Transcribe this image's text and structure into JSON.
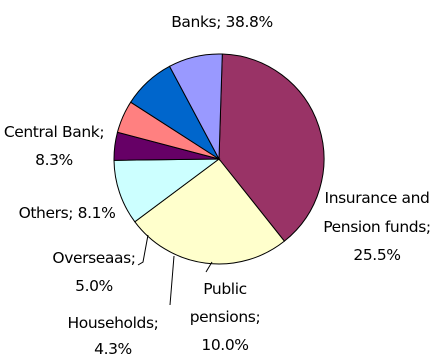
{
  "chart_data": {
    "type": "pie",
    "title": "",
    "slices": [
      {
        "label": "Banks",
        "value": 38.8,
        "value_text": "38.8%",
        "color": "#993366"
      },
      {
        "label": "Insurance and Pension funds",
        "value": 25.5,
        "value_text": "25.5%",
        "color": "#FFFFCC"
      },
      {
        "label": "Public pensions",
        "value": 10.0,
        "value_text": "10.0%",
        "color": "#CCFFFF"
      },
      {
        "label": "Households",
        "value": 4.3,
        "value_text": "4.3%",
        "color": "#660066"
      },
      {
        "label": "Overseaas",
        "value": 5.0,
        "value_text": "5.0%",
        "color": "#FF8080"
      },
      {
        "label": "Others",
        "value": 8.1,
        "value_text": "8.1%",
        "color": "#0066CC"
      },
      {
        "label": "Central Bank",
        "value": 8.3,
        "value_text": "8.3%",
        "color": "#9999FF"
      }
    ],
    "data_labels": {
      "banks": "Banks; 38.8%",
      "insurance_line1": "Insurance and",
      "insurance_line2": "Pension funds;",
      "insurance_line3": "25.5%",
      "public_line1": "Public",
      "public_line2": "pensions;",
      "public_line3": "10.0%",
      "households_line1": "Households;",
      "households_line2": "4.3%",
      "overseas_line1": "Overseaas;",
      "overseas_line2": "5.0%",
      "others": "Others; 8.1%",
      "central_line1": "Central Bank;",
      "central_line2": "8.3%"
    }
  }
}
